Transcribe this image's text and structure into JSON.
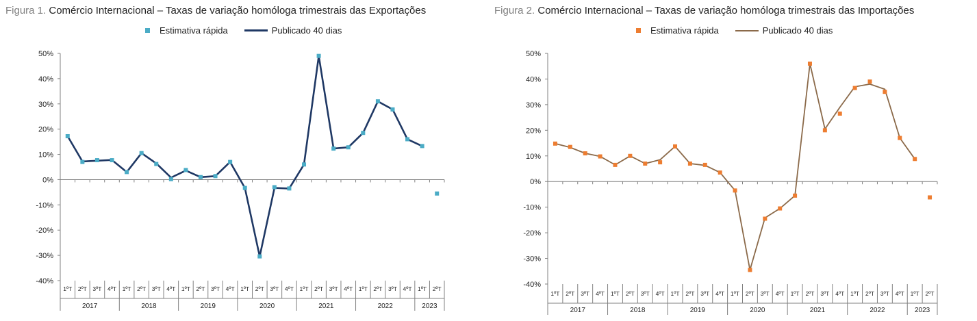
{
  "colors": {
    "exports_marker": "#4bacc6",
    "exports_line": "#1f3864",
    "imports_marker": "#ed7d31",
    "imports_line": "#8b6a4a",
    "axis": "#808080"
  },
  "chart_data": [
    {
      "type": "line",
      "title_label": "Figura 1.",
      "title": "Comércio Internacional – Taxas de variação homóloga trimestrais das Exportações",
      "ylim": [
        -0.4,
        0.5
      ],
      "y_ticks": [
        0.5,
        0.4,
        0.3,
        0.2,
        0.1,
        0,
        -0.1,
        -0.2,
        -0.3,
        -0.4
      ],
      "y_tick_labels": [
        "50%",
        "40%",
        "30%",
        "20%",
        "10%",
        "0%",
        "-10%",
        "-20%",
        "-30%",
        "-40%"
      ],
      "grid": false,
      "legend_position": "top-center",
      "quarters": [
        "1ºT",
        "2ºT",
        "3ºT",
        "4ºT",
        "1ºT",
        "2ºT",
        "3ºT",
        "4ºT",
        "1ºT",
        "2ºT",
        "3ºT",
        "4ºT",
        "1ºT",
        "2ºT",
        "3ºT",
        "4ºT",
        "1ºT",
        "2ºT",
        "3ºT",
        "4ºT",
        "1ºT",
        "2ºT",
        "3ºT",
        "4ºT",
        "1ºT",
        "2ºT"
      ],
      "years": [
        {
          "label": "2017",
          "quarters": 4
        },
        {
          "label": "2018",
          "quarters": 4
        },
        {
          "label": "2019",
          "quarters": 4
        },
        {
          "label": "2020",
          "quarters": 4
        },
        {
          "label": "2021",
          "quarters": 4
        },
        {
          "label": "2022",
          "quarters": 4
        },
        {
          "label": "2023",
          "quarters": 2
        }
      ],
      "series": [
        {
          "name": "Estimativa rápida",
          "kind": "marker",
          "values": [
            0.172,
            0.07,
            0.077,
            0.077,
            0.03,
            0.105,
            0.062,
            0.002,
            0.038,
            0.01,
            0.014,
            0.07,
            -0.033,
            -0.304,
            -0.03,
            -0.035,
            0.06,
            0.49,
            0.123,
            0.128,
            0.185,
            0.31,
            0.278,
            0.16,
            0.133,
            -0.055
          ]
        },
        {
          "name": "Publicado 40 dias",
          "kind": "line",
          "values": [
            0.172,
            0.072,
            0.075,
            0.078,
            0.03,
            0.105,
            0.064,
            0.008,
            0.036,
            0.01,
            0.014,
            0.07,
            -0.033,
            -0.304,
            -0.033,
            -0.035,
            0.06,
            0.49,
            0.123,
            0.128,
            0.185,
            0.31,
            0.278,
            0.16,
            0.133,
            null
          ]
        }
      ]
    },
    {
      "type": "line",
      "title_label": "Figura 2.",
      "title": "Comércio Internacional – Taxas de variação homóloga trimestrais das Importações",
      "ylim": [
        -0.4,
        0.5
      ],
      "y_ticks": [
        0.5,
        0.4,
        0.3,
        0.2,
        0.1,
        0,
        -0.1,
        -0.2,
        -0.3,
        -0.4
      ],
      "y_tick_labels": [
        "50%",
        "40%",
        "30%",
        "20%",
        "10%",
        "0%",
        "-10%",
        "-20%",
        "-30%",
        "-40%"
      ],
      "grid": false,
      "legend_position": "top-center",
      "quarters": [
        "1ºT",
        "2ºT",
        "3ºT",
        "4ºT",
        "1ºT",
        "2ºT",
        "3ºT",
        "4ºT",
        "1ºT",
        "2ºT",
        "3ºT",
        "4ºT",
        "1ºT",
        "2ºT",
        "3ºT",
        "4ºT",
        "1ºT",
        "2ºT",
        "3ºT",
        "4ºT",
        "1ºT",
        "2ºT",
        "3ºT",
        "4ºT",
        "1ºT",
        "2ºT"
      ],
      "years": [
        {
          "label": "2017",
          "quarters": 4
        },
        {
          "label": "2018",
          "quarters": 4
        },
        {
          "label": "2019",
          "quarters": 4
        },
        {
          "label": "2020",
          "quarters": 4
        },
        {
          "label": "2021",
          "quarters": 4
        },
        {
          "label": "2022",
          "quarters": 4
        },
        {
          "label": "2023",
          "quarters": 2
        }
      ],
      "series": [
        {
          "name": "Estimativa rápida",
          "kind": "marker",
          "values": [
            0.148,
            0.135,
            0.11,
            0.098,
            0.065,
            0.1,
            0.07,
            0.075,
            0.137,
            0.07,
            0.065,
            0.035,
            -0.035,
            -0.345,
            -0.145,
            -0.105,
            -0.055,
            0.46,
            0.2,
            0.265,
            0.365,
            0.39,
            0.35,
            0.17,
            0.088,
            -0.062
          ]
        },
        {
          "name": "Publicado 40 dias",
          "kind": "line",
          "values": [
            0.148,
            0.133,
            0.11,
            0.098,
            0.065,
            0.1,
            0.07,
            0.085,
            0.137,
            0.07,
            0.063,
            0.035,
            -0.035,
            -0.345,
            -0.142,
            -0.105,
            -0.055,
            0.46,
            0.205,
            0.29,
            0.37,
            0.38,
            0.36,
            0.17,
            0.088,
            null
          ]
        }
      ]
    }
  ]
}
